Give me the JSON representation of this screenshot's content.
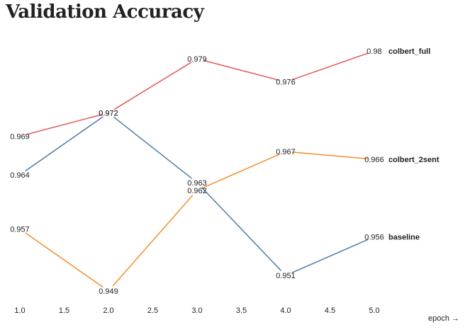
{
  "chart_data": {
    "type": "line",
    "title": "Validation Accuracy",
    "xlabel": "epoch →",
    "ylabel": "",
    "x": [
      1,
      2,
      3,
      4,
      5
    ],
    "x_ticks": [
      "1.0",
      "1.5",
      "2.0",
      "2.5",
      "3.0",
      "3.5",
      "4.0",
      "4.5",
      "5.0"
    ],
    "xlim": [
      1,
      5
    ],
    "ylim": [
      0.949,
      0.98
    ],
    "grid": false,
    "series": [
      {
        "name": "colbert_full",
        "color": "#e15759",
        "values": [
          0.969,
          0.972,
          0.979,
          0.976,
          0.98
        ]
      },
      {
        "name": "colbert_2sent",
        "color": "#f28e2b",
        "values": [
          0.957,
          0.949,
          0.962,
          0.967,
          0.966
        ]
      },
      {
        "name": "baseline",
        "color": "#4e79a7",
        "values": [
          0.964,
          0.972,
          0.963,
          0.951,
          0.956
        ]
      }
    ]
  }
}
